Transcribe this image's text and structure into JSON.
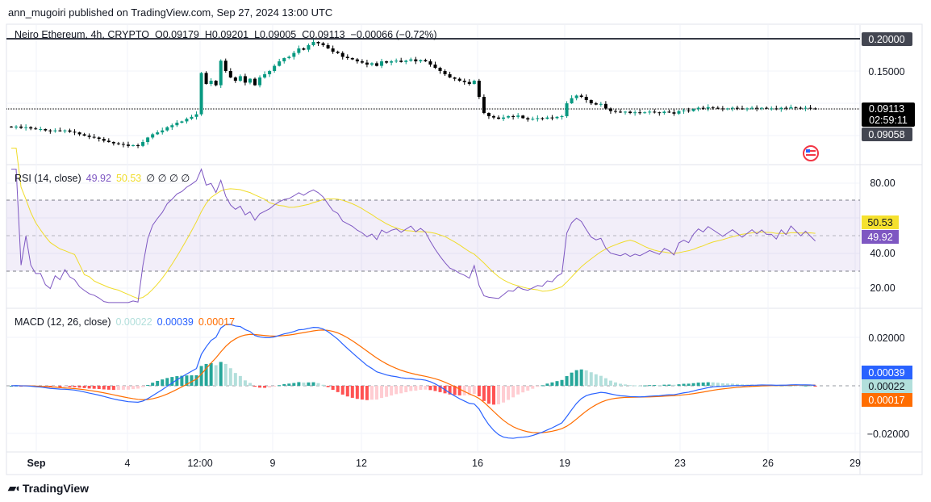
{
  "header": {
    "published": "ann_mugoiri published on TradingView.com, Sep 27, 2024 13:00 UTC"
  },
  "legend": {
    "symbol": "Neiro Ethereum, 4h, CRYPTO",
    "open": "O0.09179",
    "high": "H0.09201",
    "low": "L0.09005",
    "close": "C0.09113",
    "change": "−0.00066 (−0.72%)"
  },
  "price_axis": {
    "ticks": [
      "0.20000",
      "0.15000"
    ],
    "line_label": "0.20000",
    "last_price": "0.09113",
    "countdown": "02:59:11",
    "prev_price": "0.09058"
  },
  "rsi": {
    "title": "RSI (14, close)",
    "value": "49.92",
    "ma_value": "50.53",
    "extra": "∅ ∅ ∅ ∅",
    "ticks": [
      "80.00",
      "40.00",
      "20.00"
    ],
    "colors": {
      "rsi": "#7e57c2",
      "ma": "#f0dc2a"
    }
  },
  "macd": {
    "title": "MACD (12, 26, close)",
    "hist": "0.00022",
    "macd": "0.00039",
    "signal": "0.00017",
    "ticks": [
      "0.02000",
      "−0.02000"
    ],
    "colors": {
      "hist": "#b2dfdb",
      "macd": "#2962ff",
      "signal": "#ff6d00"
    }
  },
  "time_axis": [
    "Sep",
    "4",
    "12:00",
    "9",
    "12",
    "16",
    "19",
    "23",
    "26",
    "29"
  ],
  "footer": {
    "brand": "TradingView"
  },
  "chart_data": {
    "type": "candlestick",
    "interval": "4h",
    "start": "Aug 31 00:00",
    "colors": {
      "up": "#089981",
      "down": "#000000"
    },
    "ylim": [
      0.02,
      0.21
    ],
    "closes": [
      0.063,
      0.064,
      0.062,
      0.063,
      0.061,
      0.06,
      0.06,
      0.058,
      0.057,
      0.058,
      0.057,
      0.058,
      0.056,
      0.055,
      0.052,
      0.05,
      0.048,
      0.047,
      0.045,
      0.042,
      0.04,
      0.038,
      0.037,
      0.036,
      0.034,
      0.035,
      0.034,
      0.04,
      0.047,
      0.052,
      0.055,
      0.058,
      0.063,
      0.066,
      0.07,
      0.072,
      0.076,
      0.079,
      0.083,
      0.147,
      0.13,
      0.135,
      0.128,
      0.166,
      0.15,
      0.14,
      0.135,
      0.142,
      0.132,
      0.138,
      0.128,
      0.14,
      0.145,
      0.15,
      0.158,
      0.165,
      0.17,
      0.172,
      0.178,
      0.185,
      0.183,
      0.19,
      0.195,
      0.193,
      0.19,
      0.185,
      0.18,
      0.178,
      0.172,
      0.17,
      0.168,
      0.165,
      0.163,
      0.16,
      0.162,
      0.158,
      0.165,
      0.163,
      0.165,
      0.166,
      0.164,
      0.166,
      0.168,
      0.165,
      0.167,
      0.165,
      0.16,
      0.155,
      0.15,
      0.145,
      0.14,
      0.138,
      0.135,
      0.133,
      0.13,
      0.135,
      0.11,
      0.085,
      0.08,
      0.078,
      0.076,
      0.078,
      0.08,
      0.079,
      0.081,
      0.077,
      0.075,
      0.076,
      0.077,
      0.076,
      0.078,
      0.077,
      0.079,
      0.08,
      0.1,
      0.108,
      0.112,
      0.11,
      0.105,
      0.1,
      0.098,
      0.099,
      0.092,
      0.088,
      0.087,
      0.086,
      0.087,
      0.085,
      0.086,
      0.085,
      0.086,
      0.087,
      0.086,
      0.085,
      0.087,
      0.086,
      0.084,
      0.088,
      0.089,
      0.088,
      0.091,
      0.093,
      0.092,
      0.094,
      0.093,
      0.092,
      0.091,
      0.092,
      0.093,
      0.092,
      0.091,
      0.092,
      0.093,
      0.092,
      0.093,
      0.092,
      0.092,
      0.091,
      0.093,
      0.092,
      0.094,
      0.093,
      0.092,
      0.093,
      0.092,
      0.091
    ]
  }
}
